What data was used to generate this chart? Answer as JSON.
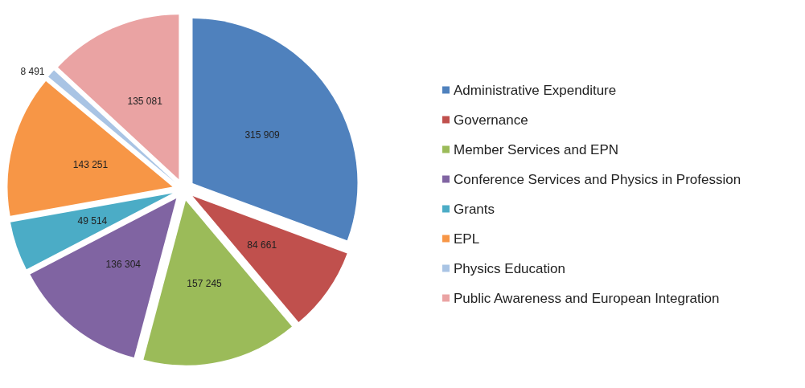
{
  "chart_data": {
    "type": "pie",
    "categories": [
      "Administrative Expenditure",
      "Governance",
      "Member Services and EPN",
      "Conference Services and Physics in Profession",
      "Grants",
      "EPL",
      "Physics Education",
      "Public Awareness and European Integration"
    ],
    "values": [
      315909,
      84661,
      157245,
      136304,
      49514,
      143251,
      8491,
      135081
    ],
    "value_labels": [
      "315 909",
      "84 661",
      "157 245",
      "136 304",
      "49 514",
      "143 251",
      "8 491",
      "135 081"
    ],
    "colors": [
      "#4f81bd",
      "#c0504d",
      "#9bbb59",
      "#8064a2",
      "#4bacc6",
      "#f79646",
      "#a9c4e4",
      "#eaa3a3"
    ],
    "legend": "right"
  }
}
